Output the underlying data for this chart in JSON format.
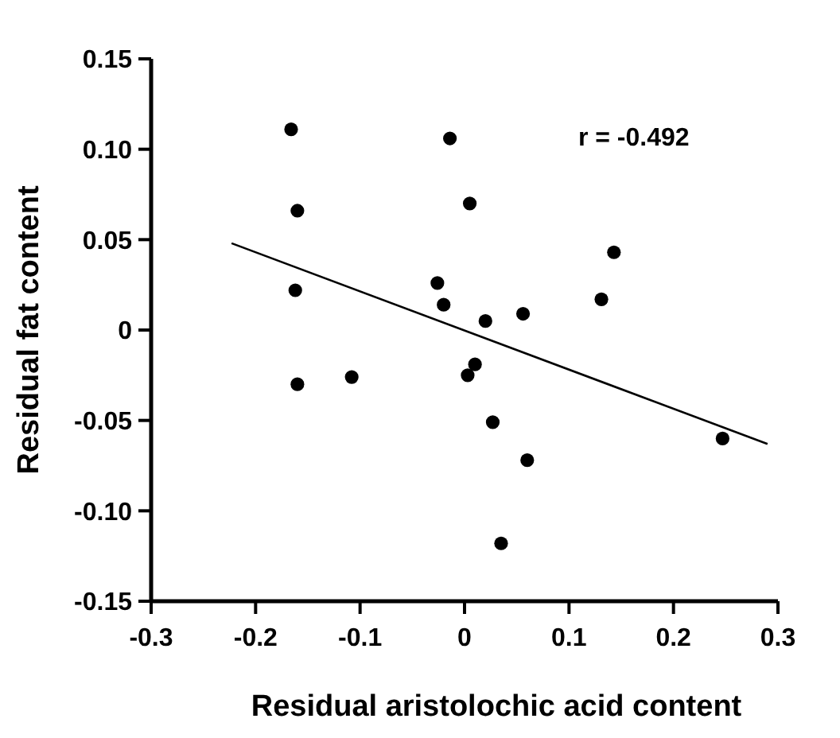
{
  "chart_data": {
    "type": "scatter",
    "xlabel": "Residual aristolochic acid content",
    "ylabel": "Residual fat content",
    "annotations": [
      "r = -0.492"
    ],
    "xlim": [
      -0.3,
      0.3
    ],
    "ylim": [
      -0.15,
      0.15
    ],
    "xticks": [
      -0.3,
      -0.2,
      -0.1,
      0,
      0.1,
      0.2,
      0.3
    ],
    "yticks": [
      -0.15,
      {
        "value": -0.1,
        "label": "-0.10"
      },
      -0.05,
      0,
      0.05,
      {
        "value": 0.1,
        "label": "0.10"
      },
      0.15
    ],
    "grid": false,
    "marker": "circle",
    "series": [
      {
        "color": "#000000",
        "x": [
          -0.166,
          -0.014,
          -0.16,
          0.005,
          0.143,
          -0.026,
          -0.162,
          0.131,
          -0.02,
          0.056,
          0.02,
          0.01,
          0.003,
          -0.108,
          -0.16,
          0.027,
          0.06,
          0.035,
          0.247
        ],
        "values": [
          0.111,
          0.106,
          0.066,
          0.07,
          0.043,
          0.026,
          0.022,
          0.017,
          0.014,
          0.009,
          0.005,
          -0.019,
          -0.025,
          -0.026,
          -0.03,
          -0.051,
          -0.072,
          -0.118,
          -0.06
        ]
      },
      {
        "type": "line",
        "color": "#000000",
        "marker": "none",
        "line_style": "solid",
        "x": [
          -0.223,
          0.29
        ],
        "values": [
          0.048,
          -0.063
        ]
      }
    ]
  }
}
